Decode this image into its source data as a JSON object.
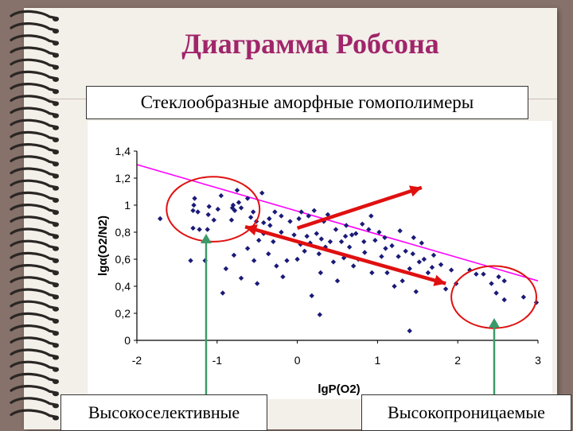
{
  "slide": {
    "title": "Диаграмма Робсона",
    "subtitle": "Стеклообразные аморфные гомополимеры",
    "label_left": "Высокоселективные",
    "label_right": "Высокопроницаемые"
  },
  "colors": {
    "title": "#a0256a",
    "points": "#1a1a78",
    "upper_bound": "#ff00ff",
    "arrows": "#e01010",
    "pointer_arrows": "#3c9a6a"
  },
  "chart_data": {
    "type": "scatter",
    "xlabel": "lgP(O2)",
    "ylabel": "lgα(O2/N2)",
    "xlim": [
      -2,
      3
    ],
    "ylim": [
      0,
      1.4
    ],
    "xticks": [
      "-2",
      "-1",
      "0",
      "1",
      "2",
      "3"
    ],
    "yticks": [
      "0",
      "0,2",
      "0,4",
      "0,6",
      "0,8",
      "1",
      "1,2",
      "1,4"
    ],
    "grid": false,
    "upper_bound_line": {
      "x": [
        -2,
        3
      ],
      "y": [
        1.3,
        0.44
      ]
    },
    "highlight_regions": [
      {
        "cx": -1.05,
        "cy": 0.97,
        "rx": 0.58,
        "ry": 0.24,
        "label": "Высокоселективные"
      },
      {
        "cx": 2.45,
        "cy": 0.32,
        "rx": 0.53,
        "ry": 0.23,
        "label": "Высокопроницаемые"
      }
    ],
    "trend_arrows": [
      {
        "from": [
          -0.65,
          0.84
        ],
        "to": [
          1.85,
          0.42
        ],
        "double": true
      },
      {
        "from": [
          0.0,
          0.83
        ],
        "to": [
          1.55,
          1.13
        ],
        "double": false
      }
    ],
    "points": [
      [
        -1.71,
        0.9
      ],
      [
        -1.33,
        0.59
      ],
      [
        -1.3,
        0.96
      ],
      [
        -1.3,
        0.83
      ],
      [
        -1.29,
        1.0
      ],
      [
        -1.28,
        1.05
      ],
      [
        -1.24,
        0.95
      ],
      [
        -1.15,
        0.59
      ],
      [
        -1.12,
        0.82
      ],
      [
        -1.11,
        0.93
      ],
      [
        -1.1,
        0.99
      ],
      [
        -1.04,
        0.89
      ],
      [
        -0.99,
        0.97
      ],
      [
        -0.93,
        0.35
      ],
      [
        -0.89,
        0.53
      ],
      [
        -0.82,
        0.89
      ],
      [
        -0.81,
        0.98
      ],
      [
        -0.8,
        1.0
      ],
      [
        -0.79,
        0.63
      ],
      [
        -0.78,
        0.96
      ],
      [
        -0.75,
        1.11
      ],
      [
        -0.73,
        1.02
      ],
      [
        -0.7,
        0.46
      ],
      [
        -0.7,
        0.98
      ],
      [
        -0.62,
        1.05
      ],
      [
        -0.58,
        0.91
      ],
      [
        -0.54,
        0.59
      ],
      [
        -0.51,
        0.88
      ],
      [
        -0.5,
        0.42
      ],
      [
        -0.48,
        0.74
      ],
      [
        -0.44,
        1.09
      ],
      [
        -0.42,
        0.87
      ],
      [
        -0.36,
        0.64
      ],
      [
        -0.35,
        0.9
      ],
      [
        -0.34,
        0.85
      ],
      [
        -0.28,
        0.95
      ],
      [
        -0.26,
        0.55
      ],
      [
        -0.2,
        0.8
      ],
      [
        -0.18,
        0.47
      ],
      [
        -0.13,
        0.59
      ],
      [
        -0.09,
        0.88
      ],
      [
        -0.04,
        0.78
      ],
      [
        0.0,
        0.6
      ],
      [
        0.02,
        0.9
      ],
      [
        0.04,
        0.71
      ],
      [
        0.09,
        0.66
      ],
      [
        0.14,
        0.92
      ],
      [
        0.16,
        0.72
      ],
      [
        0.18,
        0.33
      ],
      [
        0.21,
        0.96
      ],
      [
        0.24,
        0.79
      ],
      [
        0.27,
        0.64
      ],
      [
        0.29,
        0.5
      ],
      [
        0.33,
        0.88
      ],
      [
        0.38,
        0.93
      ],
      [
        0.41,
        0.73
      ],
      [
        0.45,
        0.58
      ],
      [
        0.48,
        0.82
      ],
      [
        0.5,
        0.44
      ],
      [
        0.55,
        0.73
      ],
      [
        0.58,
        0.61
      ],
      [
        0.61,
        0.85
      ],
      [
        0.65,
        0.69
      ],
      [
        0.7,
        0.55
      ],
      [
        0.73,
        0.79
      ],
      [
        0.76,
        0.6
      ],
      [
        0.81,
        0.86
      ],
      [
        0.84,
        0.65
      ],
      [
        0.89,
        0.82
      ],
      [
        0.93,
        0.5
      ],
      [
        0.97,
        0.74
      ],
      [
        1.02,
        0.8
      ],
      [
        1.05,
        0.62
      ],
      [
        1.09,
        0.76
      ],
      [
        1.12,
        0.5
      ],
      [
        1.18,
        0.7
      ],
      [
        1.21,
        0.4
      ],
      [
        1.26,
        0.62
      ],
      [
        1.31,
        0.44
      ],
      [
        1.35,
        0.66
      ],
      [
        1.4,
        0.53
      ],
      [
        1.44,
        0.64
      ],
      [
        1.48,
        0.36
      ],
      [
        1.52,
        0.58
      ],
      [
        1.58,
        0.6
      ],
      [
        1.63,
        0.5
      ],
      [
        1.68,
        0.54
      ],
      [
        1.73,
        0.44
      ],
      [
        1.79,
        0.56
      ],
      [
        1.85,
        0.38
      ],
      [
        1.92,
        0.52
      ],
      [
        1.98,
        0.42
      ],
      [
        2.15,
        0.52
      ],
      [
        2.23,
        0.49
      ],
      [
        2.32,
        0.49
      ],
      [
        2.42,
        0.42
      ],
      [
        2.48,
        0.35
      ],
      [
        2.51,
        0.47
      ],
      [
        2.58,
        0.3
      ],
      [
        2.58,
        0.44
      ],
      [
        2.82,
        0.32
      ],
      [
        2.98,
        0.28
      ],
      [
        1.4,
        0.07
      ],
      [
        0.28,
        0.19
      ],
      [
        -0.62,
        0.68
      ],
      [
        -0.3,
        0.73
      ],
      [
        0.12,
        0.77
      ],
      [
        0.6,
        0.77
      ],
      [
        1.1,
        0.68
      ],
      [
        1.55,
        0.72
      ],
      [
        0.92,
        0.92
      ],
      [
        0.35,
        0.69
      ],
      [
        0.05,
        0.95
      ],
      [
        -0.2,
        0.92
      ],
      [
        -0.55,
        0.95
      ],
      [
        -0.42,
        0.79
      ],
      [
        0.68,
        0.78
      ],
      [
        1.28,
        0.81
      ],
      [
        1.7,
        0.63
      ],
      [
        -0.95,
        1.07
      ],
      [
        -1.22,
        0.82
      ],
      [
        0.3,
        0.75
      ],
      [
        0.83,
        0.73
      ],
      [
        1.45,
        0.76
      ]
    ]
  }
}
